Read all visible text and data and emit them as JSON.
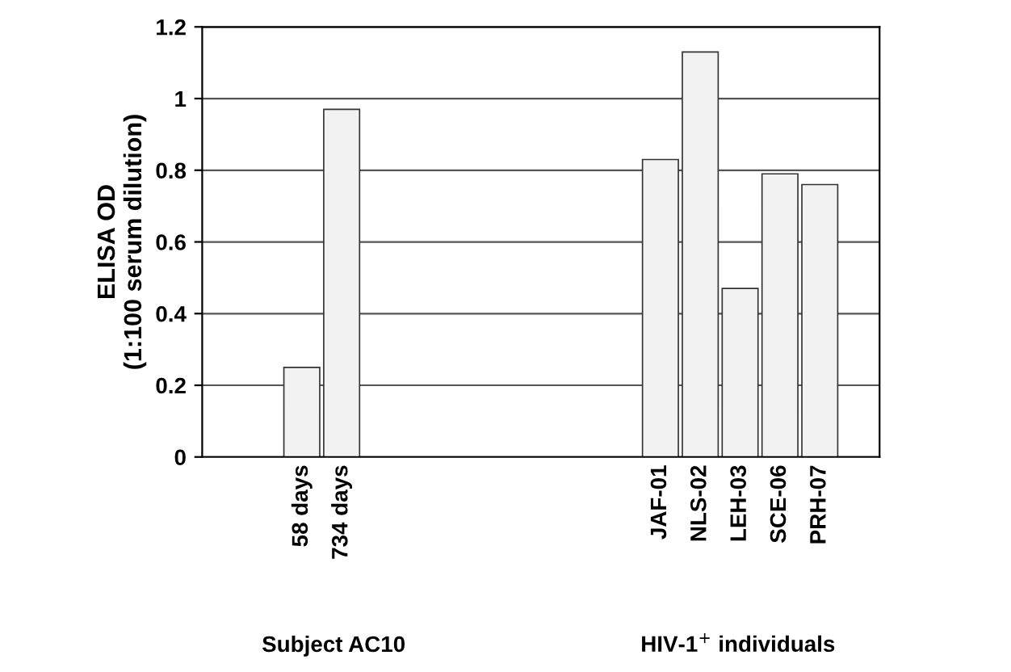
{
  "chart_data": {
    "type": "bar",
    "ylabel": "ELISA OD\n(1:100 serum dilution)",
    "categories": [
      null,
      null,
      "58 days",
      "734 days",
      null,
      null,
      null,
      null,
      null,
      null,
      null,
      "JAF-01",
      "NLS-02",
      "LEH-03",
      "SCE-06",
      "PRH-07",
      null
    ],
    "values": [
      null,
      null,
      0.25,
      0.97,
      null,
      null,
      null,
      null,
      null,
      null,
      null,
      0.83,
      1.13,
      0.47,
      0.79,
      0.76,
      null
    ],
    "color": "#f2f2f2",
    "ylim": [
      0,
      1.2
    ],
    "yticks": [
      0,
      0.2,
      0.4,
      0.6,
      0.8,
      1,
      1.2
    ],
    "grid": "y",
    "annotations": [
      "Subject AC10",
      "HIV-1$^{+}$ individuals"
    ]
  }
}
